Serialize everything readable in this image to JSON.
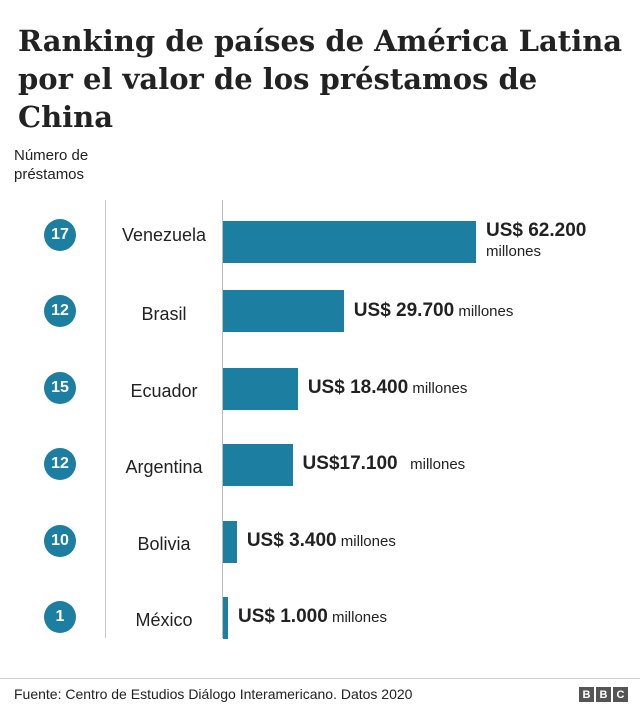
{
  "title": "Ranking de países de América Latina por el valor de los préstamos de China",
  "count_header": "Número de préstamos",
  "source": "Fuente: Centro de Estudios Diálogo Interamericano. Datos 2020",
  "logo": [
    "B",
    "B",
    "C"
  ],
  "colors": {
    "bar": "#1c7ea0",
    "badge": "#1c7ea0"
  },
  "chart_data": {
    "type": "bar",
    "orientation": "horizontal",
    "categories": [
      "Venezuela",
      "Brasil",
      "Ecuador",
      "Argentina",
      "Bolivia",
      "México"
    ],
    "series": [
      {
        "values": [
          62200,
          29700,
          18400,
          17100,
          3400,
          1000
        ]
      }
    ],
    "loan_counts": [
      "17",
      "12",
      "15",
      "12",
      "10",
      "1"
    ],
    "value_labels": [
      {
        "amount": "US$ 62.200",
        "unit": "millones"
      },
      {
        "amount": "US$ 29.700",
        "unit": "millones"
      },
      {
        "amount": "US$ 18.400",
        "unit": "millones"
      },
      {
        "amount": "US$17.100",
        "unit": "millones"
      },
      {
        "amount": "US$ 3.400",
        "unit": "millones"
      },
      {
        "amount": "US$ 1.000",
        "unit": "millones"
      }
    ],
    "xlim": [
      0,
      62200
    ]
  }
}
